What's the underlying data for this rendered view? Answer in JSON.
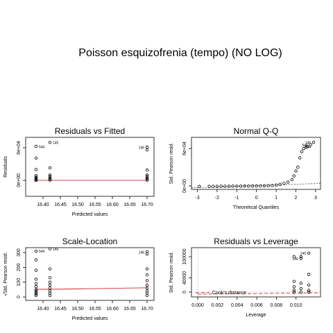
{
  "title": "Poisson esquizofrenia (tempo) (NO LOG)",
  "chart_data": [
    {
      "type": "scatter",
      "title": "Residuals vs Fitted",
      "xlabel": "Predicted values",
      "ylabel": "Residuals",
      "x": [
        16.38,
        16.38,
        16.38,
        16.38,
        16.38,
        16.38,
        16.38,
        16.38,
        16.38,
        16.42,
        16.42,
        16.42,
        16.42,
        16.42,
        16.42,
        16.42,
        16.7,
        16.7,
        16.7,
        16.7,
        16.7,
        16.7,
        16.7,
        16.7
      ],
      "y": [
        62600,
        40900,
        20000,
        9000,
        6000,
        4000,
        2500,
        1000,
        0,
        70000,
        23000,
        10000,
        7000,
        4000,
        2000,
        500,
        61300,
        56000,
        19000,
        10000,
        7000,
        4000,
        2000,
        500
      ],
      "xlim": [
        16.35,
        16.72
      ],
      "ylim": [
        -29400,
        79150
      ],
      "xticks": [
        {
          "value": 16.4,
          "label": "16.40"
        },
        16.45,
        {
          "value": 16.5,
          "label": "16.50"
        },
        16.55,
        {
          "value": 16.6,
          "label": "16.60"
        },
        16.65,
        {
          "value": 16.7,
          "label": "16.70"
        }
      ],
      "yticks": [
        {
          "value": 0,
          "label": "0e+00"
        },
        {
          "value": 60000,
          "label": "6e+04"
        }
      ],
      "hline": 0,
      "smooth": {
        "color": "#d62728",
        "dash": "",
        "x": [
          16.38,
          16.42,
          16.7
        ],
        "values": [
          0,
          0,
          0
        ]
      },
      "annotations": [
        {
          "text": "544",
          "x": 16.38,
          "y": 62600,
          "side": "right"
        },
        {
          "text": "145",
          "x": 16.42,
          "y": 70000,
          "side": "right"
        },
        {
          "text": "146",
          "x": 16.7,
          "y": 61300,
          "side": "left"
        }
      ]
    },
    {
      "type": "scatter",
      "title": "Normal Q-Q",
      "xlabel": "Theoretical Quantiles",
      "ylabel": "Std. Pearson resid.",
      "x": [
        -2.9,
        -2.4,
        -2.2,
        -2.0,
        -1.8,
        -1.6,
        -1.4,
        -1.2,
        -1.0,
        -0.8,
        -0.6,
        -0.4,
        -0.2,
        0,
        0.2,
        0.4,
        0.6,
        0.8,
        1.0,
        1.2,
        1.4,
        1.6,
        1.8,
        1.9,
        2.0,
        2.1,
        2.2,
        2.3,
        2.4,
        2.5,
        2.6,
        2.75,
        2.9
      ],
      "y": [
        -800,
        -700,
        -650,
        -600,
        -550,
        -500,
        -450,
        -400,
        -350,
        -300,
        -250,
        -200,
        -150,
        -100,
        0,
        100,
        300,
        600,
        1500,
        2500,
        4000,
        6000,
        10000,
        16000,
        24000,
        30000,
        45000,
        55000,
        60000,
        62000,
        63000,
        66000,
        70000
      ],
      "xlim": [
        -3.3,
        3.25
      ],
      "ylim": [
        -5560,
        77800
      ],
      "xticks": [
        -3,
        -2,
        -1,
        0,
        1,
        2,
        3
      ],
      "yticks": [
        {
          "value": 0,
          "label": "0e+00"
        },
        {
          "value": 60000,
          "label": "6e+04"
        }
      ],
      "smooth": {
        "color": "#555555",
        "dash": "2,2",
        "x": [
          -3.3,
          3.25
        ],
        "values": [
          -3000,
          4000
        ]
      },
      "annotations": [
        {
          "text": "145",
          "x": 2.9,
          "y": 70000,
          "side": "left"
        },
        {
          "text": "546",
          "x": 2.75,
          "y": 66000,
          "side": "left"
        },
        {
          "text": "544",
          "x": 2.9,
          "y": 63000,
          "side": "left"
        }
      ]
    },
    {
      "type": "scatter",
      "title": "Scale-Location",
      "xlabel": "Predicted values",
      "ylabel": "√Std. Pearson resid.",
      "x": [
        16.38,
        16.38,
        16.38,
        16.38,
        16.38,
        16.38,
        16.38,
        16.38,
        16.38,
        16.38,
        16.38,
        16.42,
        16.42,
        16.42,
        16.42,
        16.42,
        16.42,
        16.42,
        16.42,
        16.42,
        16.7,
        16.7,
        16.7,
        16.7,
        16.7,
        16.7,
        16.7,
        16.7,
        16.7,
        16.7
      ],
      "y": [
        310,
        250,
        180,
        120,
        90,
        70,
        50,
        40,
        30,
        20,
        10,
        325,
        190,
        130,
        100,
        80,
        60,
        40,
        25,
        10,
        305,
        290,
        190,
        150,
        110,
        80,
        60,
        40,
        25,
        10
      ],
      "xlim": [
        16.35,
        16.72
      ],
      "ylim": [
        -23,
        333
      ],
      "xticks": [
        {
          "value": 16.4,
          "label": "16.40"
        },
        16.45,
        {
          "value": 16.5,
          "label": "16.50"
        },
        16.55,
        {
          "value": 16.6,
          "label": "16.60"
        },
        16.65,
        {
          "value": 16.7,
          "label": "16.70"
        }
      ],
      "yticks": [
        0,
        100,
        200,
        300
      ],
      "smooth": {
        "color": "#d62728",
        "dash": "",
        "x": [
          16.38,
          16.42,
          16.7
        ],
        "values": [
          52,
          52,
          62
        ]
      },
      "annotations": [
        {
          "text": "544",
          "x": 16.38,
          "y": 310,
          "side": "right"
        },
        {
          "text": "145",
          "x": 16.42,
          "y": 325,
          "side": "right"
        },
        {
          "text": "146",
          "x": 16.7,
          "y": 305,
          "side": "left"
        }
      ]
    },
    {
      "type": "scatter",
      "title": "Residuals vs Leverage",
      "xlabel": "Leverage",
      "ylabel": "Std. Pearson resid.",
      "x": [
        0.0098,
        0.0098,
        0.0098,
        0.0098,
        0.0098,
        0.0105,
        0.0105,
        0.0105,
        0.0105,
        0.0105,
        0.0113,
        0.0113,
        0.0113,
        0.0113,
        0.0113
      ],
      "y": [
        100000,
        30000,
        15000,
        5000,
        0,
        100000,
        95000,
        25000,
        10000,
        0,
        110000,
        50000,
        20000,
        5000,
        0
      ],
      "xlim": [
        -0.00064,
        0.01249
      ],
      "ylim": [
        -13700,
        125500
      ],
      "xticks": [
        {
          "value": 0,
          "label": "0.000"
        },
        0.002,
        0.004,
        0.006,
        0.008,
        {
          "value": 0.01,
          "label": "0.010"
        }
      ],
      "yticks": [
        0,
        40000,
        100000
      ],
      "hline": 0,
      "vline": 0,
      "smooth": {
        "color": "#d62728",
        "dash": "5,3",
        "x": [
          0,
          0.0125
        ],
        "values": [
          -6000,
          -2000
        ]
      },
      "legend_text": "Cook's distance",
      "annotations": [
        {
          "text": "146",
          "x": 0.0105,
          "y": 95000,
          "side": "left"
        },
        {
          "text": "145",
          "x": 0.0113,
          "y": 110000,
          "side": "left"
        }
      ]
    }
  ]
}
